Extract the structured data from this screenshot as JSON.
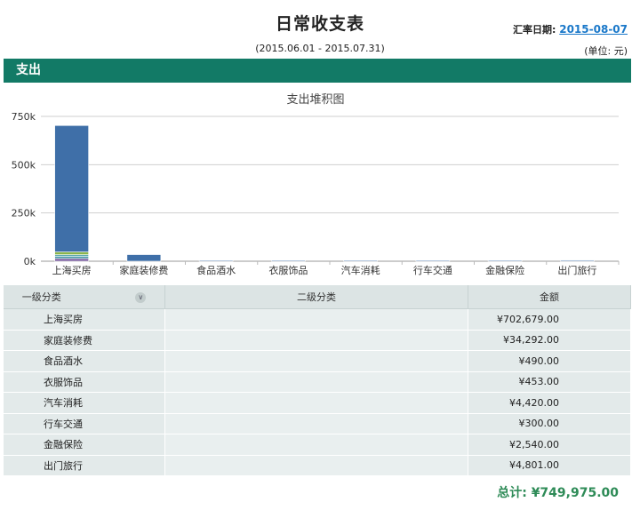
{
  "header": {
    "title": "日常收支表",
    "date_range": "(2015.06.01 - 2015.07.31)",
    "rate_label": "汇率日期:",
    "rate_date": "2015-08-07",
    "unit": "(单位: 元)"
  },
  "section": {
    "title": "支出"
  },
  "chart_data": {
    "type": "bar",
    "title": "支出堆积图",
    "categories": [
      "上海买房",
      "家庭装修费",
      "食品酒水",
      "衣服饰品",
      "汽车消耗",
      "行车交通",
      "金融保险",
      "出门旅行"
    ],
    "series": [
      {
        "values": [
          14000,
          0,
          0,
          0,
          0,
          0,
          0,
          0
        ],
        "color": "#7a5ea0"
      },
      {
        "values": [
          11000,
          0,
          0,
          0,
          0,
          0,
          0,
          0
        ],
        "color": "#4e9aa8"
      },
      {
        "values": [
          9000,
          0,
          0,
          0,
          0,
          0,
          0,
          0
        ],
        "color": "#5ba7b0"
      },
      {
        "values": [
          14000,
          0,
          0,
          0,
          0,
          0,
          0,
          0
        ],
        "color": "#8ab54a"
      },
      {
        "values": [
          654679,
          34292,
          490,
          453,
          4420,
          300,
          2540,
          4801
        ],
        "color": "#3f6fa8"
      }
    ],
    "ylim": [
      0,
      750000
    ],
    "yticks": [
      0,
      250000,
      500000,
      750000
    ],
    "ytick_labels": [
      "0k",
      "250k",
      "500k",
      "750k"
    ],
    "grid": true
  },
  "table": {
    "headers": [
      "一级分类",
      "二级分类",
      "金额"
    ],
    "sort_icon": "chevron-down-icon",
    "rows": [
      {
        "cat": "上海买房",
        "sub": "",
        "amount": "¥702,679.00"
      },
      {
        "cat": "家庭装修费",
        "sub": "",
        "amount": "¥34,292.00"
      },
      {
        "cat": "食品酒水",
        "sub": "",
        "amount": "¥490.00"
      },
      {
        "cat": "衣服饰品",
        "sub": "",
        "amount": "¥453.00"
      },
      {
        "cat": "汽车消耗",
        "sub": "",
        "amount": "¥4,420.00"
      },
      {
        "cat": "行车交通",
        "sub": "",
        "amount": "¥300.00"
      },
      {
        "cat": "金融保险",
        "sub": "",
        "amount": "¥2,540.00"
      },
      {
        "cat": "出门旅行",
        "sub": "",
        "amount": "¥4,801.00"
      }
    ]
  },
  "total": "总计: ¥749,975.00"
}
